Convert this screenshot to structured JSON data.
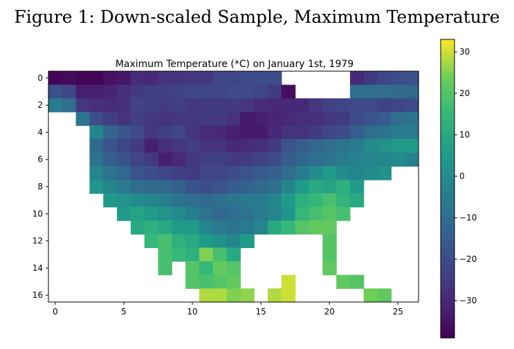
{
  "figure_caption": "Figure 1: Down-scaled Sample, Maximum Temperature",
  "chart_data": {
    "type": "heatmap",
    "title": "Maximum Temperature (*C) on January 1st, 1979",
    "xlabel": "",
    "ylabel": "",
    "x_ticks": [
      0,
      5,
      10,
      15,
      20,
      25
    ],
    "y_ticks": [
      0,
      2,
      4,
      6,
      8,
      10,
      12,
      14,
      16
    ],
    "xlim": [
      -0.5,
      26.5
    ],
    "ylim": [
      16.5,
      -0.5
    ],
    "colormap": "viridis",
    "colorbar": {
      "min": -39,
      "max": 33,
      "ticks": [
        30,
        20,
        10,
        0,
        -10,
        -20,
        -30
      ]
    },
    "grid": false,
    "rows": [
      [
        -38,
        -37,
        -38,
        -38,
        -35,
        -34,
        -29,
        -30,
        -27,
        -27,
        -26,
        -26,
        -22,
        -22,
        -20,
        -20,
        -20,
        null,
        null,
        null,
        null,
        null,
        -30,
        -25,
        -22,
        -20,
        -19
      ],
      [
        -19,
        -22,
        -32,
        -32,
        -31,
        -28,
        -25,
        -24,
        -24,
        -23,
        -22,
        -22,
        -22,
        -21,
        -21,
        -22,
        -25,
        -36,
        null,
        null,
        null,
        null,
        -10,
        -10,
        -10,
        -11,
        -12
      ],
      [
        -5,
        -10,
        -26,
        -28,
        -29,
        -28,
        -23,
        -24,
        -25,
        -24,
        -26,
        -25,
        -25,
        -25,
        -26,
        -29,
        -30,
        -30,
        -30,
        -26,
        -23,
        -22,
        -21,
        -21,
        -23,
        -22,
        -21
      ],
      [
        null,
        null,
        -8,
        -20,
        -24,
        -27,
        -24,
        -26,
        -27,
        -26,
        -26,
        -25,
        -25,
        -27,
        -33,
        -32,
        -31,
        -30,
        -28,
        -28,
        -26,
        -25,
        -20,
        -18,
        -16,
        -10,
        -8
      ],
      [
        null,
        null,
        null,
        -2,
        -13,
        -17,
        -21,
        -26,
        -24,
        -22,
        -26,
        -29,
        -30,
        -32,
        -33,
        -33,
        -30,
        -27,
        -27,
        -25,
        -22,
        -20,
        -15,
        -10,
        -8,
        -5,
        -5
      ],
      [
        null,
        null,
        null,
        -12,
        -18,
        -22,
        -25,
        -32,
        -28,
        -26,
        -24,
        -27,
        -27,
        -30,
        -29,
        -28,
        -25,
        -18,
        -15,
        -12,
        -10,
        -8,
        -5,
        0,
        2,
        5,
        5
      ],
      [
        null,
        null,
        null,
        -8,
        -15,
        -18,
        -22,
        -25,
        -32,
        -30,
        -26,
        -24,
        -24,
        -25,
        -25,
        -23,
        -20,
        -16,
        -12,
        -10,
        -8,
        -5,
        -3,
        -2,
        -2,
        0,
        -3
      ],
      [
        null,
        null,
        null,
        -2,
        -8,
        -12,
        -18,
        -20,
        -22,
        -24,
        -25,
        -22,
        -22,
        -20,
        -18,
        -16,
        -14,
        -10,
        -5,
        0,
        5,
        0,
        -2,
        0,
        2,
        null,
        null
      ],
      [
        null,
        null,
        null,
        3,
        -2,
        -6,
        -10,
        -12,
        -12,
        -14,
        -18,
        -20,
        -18,
        -16,
        -14,
        -12,
        -10,
        -2,
        5,
        10,
        8,
        12,
        5,
        null,
        null,
        null,
        null
      ],
      [
        null,
        null,
        null,
        null,
        5,
        2,
        0,
        -2,
        -4,
        -8,
        -10,
        -12,
        -10,
        -8,
        -6,
        -5,
        -2,
        5,
        12,
        15,
        18,
        14,
        10,
        null,
        null,
        null,
        null
      ],
      [
        null,
        null,
        null,
        null,
        null,
        5,
        8,
        5,
        2,
        0,
        -4,
        -8,
        -12,
        -10,
        -8,
        -5,
        -2,
        3,
        15,
        18,
        20,
        18,
        null,
        null,
        null,
        null,
        null
      ],
      [
        null,
        null,
        null,
        null,
        null,
        null,
        10,
        12,
        10,
        5,
        5,
        -2,
        -6,
        -8,
        -6,
        -2,
        10,
        15,
        20,
        22,
        22,
        null,
        null,
        null,
        null,
        null,
        null
      ],
      [
        null,
        null,
        null,
        null,
        null,
        null,
        null,
        15,
        18,
        12,
        10,
        5,
        2,
        -2,
        5,
        null,
        null,
        null,
        null,
        null,
        20,
        null,
        null,
        null,
        null,
        null,
        null
      ],
      [
        null,
        null,
        null,
        null,
        null,
        null,
        null,
        null,
        18,
        15,
        12,
        25,
        18,
        10,
        null,
        null,
        null,
        null,
        null,
        null,
        20,
        null,
        null,
        null,
        null,
        null,
        null
      ],
      [
        null,
        null,
        null,
        null,
        null,
        null,
        null,
        null,
        18,
        null,
        20,
        15,
        22,
        20,
        null,
        null,
        null,
        null,
        null,
        null,
        22,
        null,
        null,
        null,
        null,
        null,
        null
      ],
      [
        null,
        null,
        null,
        null,
        null,
        null,
        null,
        null,
        null,
        null,
        20,
        18,
        20,
        22,
        null,
        null,
        null,
        30,
        null,
        null,
        null,
        22,
        20,
        null,
        null,
        null,
        null
      ],
      [
        null,
        null,
        null,
        null,
        null,
        null,
        null,
        null,
        null,
        null,
        null,
        28,
        28,
        25,
        26,
        null,
        28,
        30,
        null,
        null,
        null,
        null,
        null,
        24,
        22,
        null,
        null
      ]
    ]
  }
}
